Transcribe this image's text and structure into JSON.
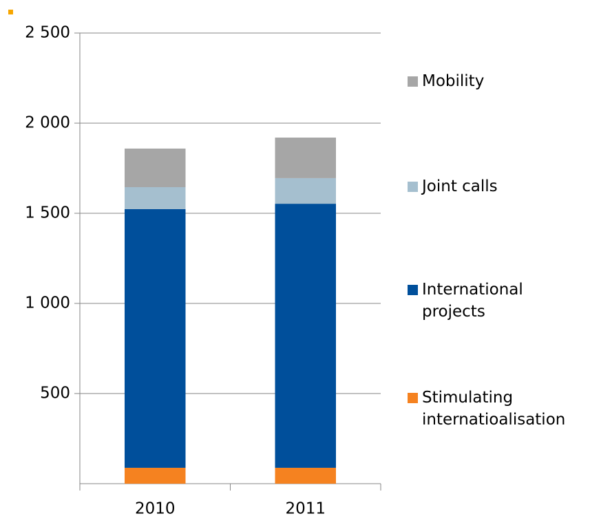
{
  "chart_data": {
    "type": "bar",
    "stacked": true,
    "categories": [
      "2010",
      "2011"
    ],
    "series": [
      {
        "name": "Stimulating internatioalisation",
        "color": "#f58220",
        "values": [
          88,
          88
        ]
      },
      {
        "name": "International projects",
        "color": "#004f9b",
        "values": [
          1435,
          1465
        ]
      },
      {
        "name": "Joint calls",
        "color": "#a5bfcf",
        "values": [
          122,
          142
        ]
      },
      {
        "name": "Mobility",
        "color": "#a6a6a6",
        "values": [
          214,
          225
        ]
      }
    ],
    "ylim": [
      0,
      2500
    ],
    "yticks": [
      {
        "value": 500,
        "label": "500"
      },
      {
        "value": 1000,
        "label": "1 000"
      },
      {
        "value": 1500,
        "label": "1 500"
      },
      {
        "value": 2000,
        "label": "2 000"
      },
      {
        "value": 2500,
        "label": "2 500"
      }
    ],
    "grid": true,
    "legend": "right"
  }
}
